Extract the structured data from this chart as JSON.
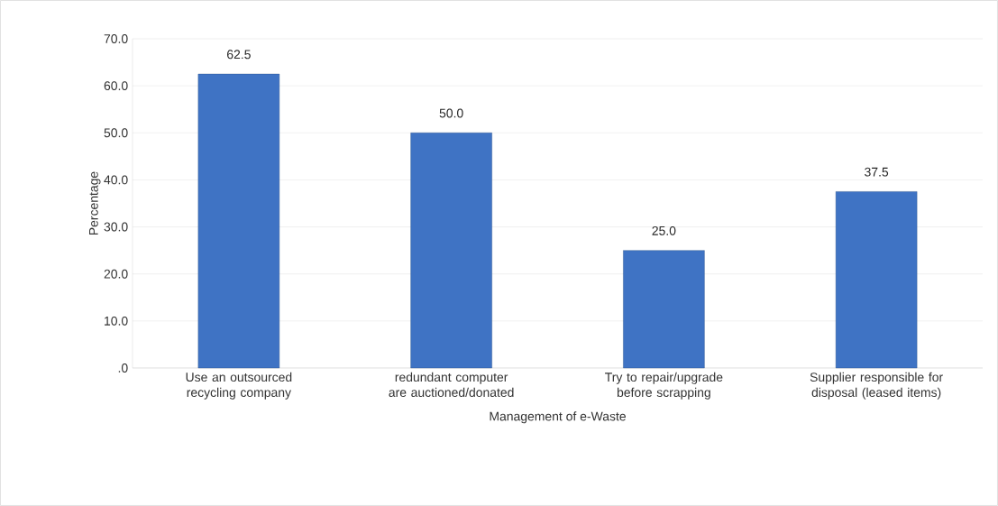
{
  "chart_data": {
    "type": "bar",
    "xlabel": "Management of e-Waste",
    "ylabel": "Percentage",
    "categories": [
      "Use an outsourced recycling company",
      "redundant computer are auctioned/donated",
      "Try to repair/upgrade before scrapping",
      "Supplier responsible for disposal (leased items)"
    ],
    "values": [
      62.5,
      50.0,
      25.0,
      37.5
    ],
    "value_labels": [
      "62.5",
      "50.0",
      "25.0",
      "37.5"
    ],
    "color": "#3f73c4",
    "ylim": [
      0,
      70
    ],
    "yticks": [
      {
        "value": 0,
        "label": ".0"
      },
      {
        "value": 10,
        "label": "10.0"
      },
      {
        "value": 20,
        "label": "20.0"
      },
      {
        "value": 30,
        "label": "30.0"
      },
      {
        "value": 40,
        "label": "40.0"
      },
      {
        "value": 50,
        "label": "50.0"
      },
      {
        "value": 60,
        "label": "60.0"
      },
      {
        "value": 70,
        "label": "70.0"
      }
    ],
    "grid": "y"
  }
}
